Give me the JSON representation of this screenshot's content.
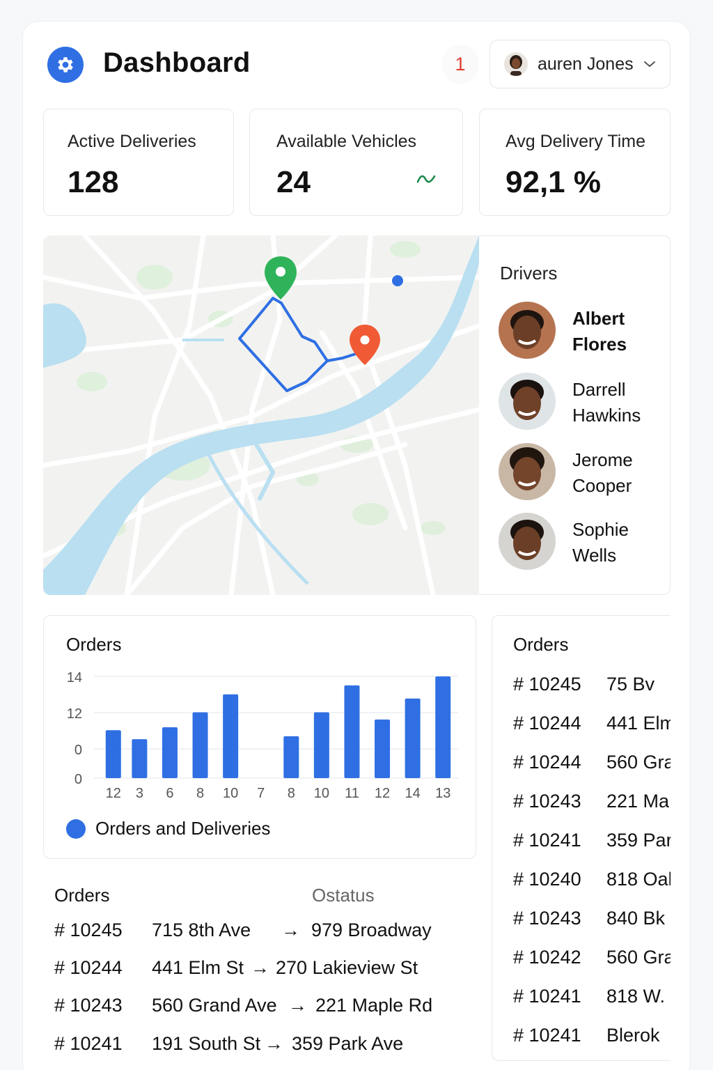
{
  "header": {
    "title": "Dashboard",
    "notification_count": "1",
    "user_name": "auren Jones"
  },
  "stats": [
    {
      "label": "Active Deliveries",
      "value": "128"
    },
    {
      "label": "Available Vehicles",
      "value": "24"
    },
    {
      "label": "Avg Delivery Time",
      "value": "92,1 %"
    }
  ],
  "drivers": {
    "title": "Drivers",
    "items": [
      {
        "name": "Albert\nFlores"
      },
      {
        "name": "Darrell\nHawkins"
      },
      {
        "name": "Jerome\nCooper"
      },
      {
        "name": "Sophie\nWells"
      }
    ]
  },
  "chart_data": {
    "type": "bar",
    "title": "Orders",
    "y_tick_labels": [
      "14",
      "12",
      "0",
      "0"
    ],
    "categories": [
      "12",
      "3",
      "6",
      "8",
      "10",
      "7",
      "8",
      "10",
      "11",
      "12",
      "14",
      "13"
    ],
    "series": [
      {
        "name": "Orders and Deliveries",
        "values": [
          8,
          6.5,
          8.5,
          11,
          14,
          null,
          7,
          11,
          15.5,
          9.8,
          13.3,
          17
        ]
      }
    ],
    "ylim": [
      0,
      17
    ],
    "grid": true,
    "legend": "bottom-left",
    "bar_color": "#2f6fe3"
  },
  "orders_table": {
    "title": "Orders",
    "status_header": "Ostatus",
    "rows": [
      {
        "id": "# 10245",
        "from": "715 8th Ave",
        "arrow": "→",
        "to": "979 Broadway"
      },
      {
        "id": "# 10244",
        "from": "441 Elm St",
        "arrow": "→",
        "to": "270 Lakieview St"
      },
      {
        "id": "# 10243",
        "from": "560 Grand Ave",
        "arrow": "→",
        "to": "221 Maple Rd"
      },
      {
        "id": "# 10241",
        "from": "191 South St",
        "arrow": "→",
        "to": "359 Park Ave"
      }
    ]
  },
  "orders_list": {
    "title": "Orders",
    "rows": [
      {
        "id": "# 10245",
        "addr": "75 Bv"
      },
      {
        "id": "# 10244",
        "addr": "441 Elm"
      },
      {
        "id": "# 10244",
        "addr": "560 Gra"
      },
      {
        "id": "# 10243",
        "addr": "221 Ma"
      },
      {
        "id": "# 10241",
        "addr": "359 Par"
      },
      {
        "id": "# 10240",
        "addr": "818 Oal"
      },
      {
        "id": "# 10243",
        "addr": "840 Bk"
      },
      {
        "id": "# 10242",
        "addr": "560 Gra"
      },
      {
        "id": "# 10241",
        "addr": "818 W."
      },
      {
        "id": "# 10241",
        "addr": "Blerok"
      }
    ]
  },
  "colors": {
    "accent": "#2f6fe3",
    "notification": "#e23b2e",
    "trend": "#1f8a4c",
    "map_water": "#b9dff1",
    "map_land": "#f2f3f1",
    "map_park": "#dcefd9",
    "pin_start": "#2fb35a",
    "pin_end": "#f05a35"
  },
  "icons": {
    "app": "gear-icon",
    "user_menu": "chevron-down-icon",
    "trend": "trend-up-icon",
    "map_start": "map-pin-icon",
    "map_end": "map-pin-icon"
  }
}
